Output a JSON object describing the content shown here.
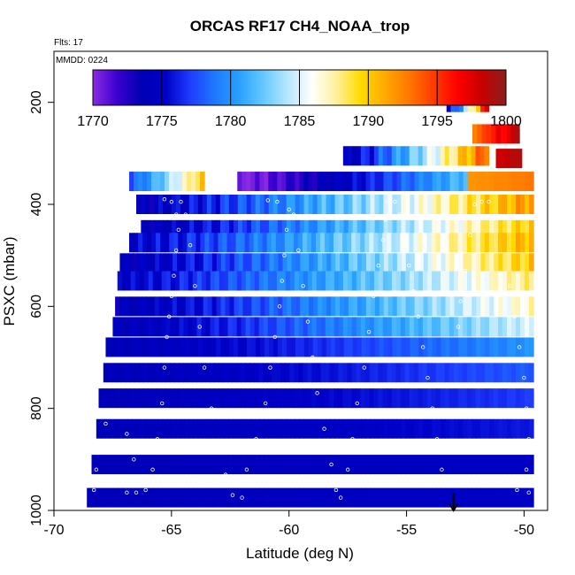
{
  "chart_data": {
    "type": "heatmap",
    "title": "ORCAS RF17 CH4_NOAA_trop",
    "flights_label": "Flts: 17",
    "date_label": "MMDD: 0224",
    "xlabel": "Latitude (deg N)",
    "ylabel": "PSXC (mbar)",
    "xlim": [
      -70,
      -49
    ],
    "ylim": [
      1000,
      100
    ],
    "x_ticks": [
      -70,
      -65,
      -60,
      -55,
      -50
    ],
    "x_tick_labels": [
      "-70",
      "-65",
      "-60",
      "-55",
      "-50"
    ],
    "y_ticks": [
      200,
      400,
      600,
      800,
      1000
    ],
    "y_tick_labels": [
      "200",
      "400",
      "600",
      "800",
      "1000"
    ],
    "colorbar": {
      "min": 1770,
      "max": 1800,
      "ticks": [
        1770,
        1775,
        1780,
        1785,
        1790,
        1795,
        1800
      ],
      "tick_labels": [
        "1770",
        "1775",
        "1780",
        "1785",
        "1790",
        "1795",
        "1800"
      ],
      "colors": [
        "#8a2be2",
        "#3a00d0",
        "#0000b4",
        "#0000c8",
        "#1e3cff",
        "#1e78ff",
        "#28a0ff",
        "#64c8ff",
        "#b4e6ff",
        "#ffffff",
        "#fff0a0",
        "#ffdc00",
        "#ffaa00",
        "#ff7800",
        "#ff3c00",
        "#ff0000",
        "#c80000",
        "#8c1e1e"
      ]
    },
    "bands": [
      {
        "p": 200,
        "x0": -53.3,
        "x1": -51.5,
        "start": 1775,
        "end": 1797
      },
      {
        "p": 262,
        "x0": -51.1,
        "x1": -50.2,
        "start": 1796,
        "end": 1799
      },
      {
        "p": 262,
        "x0": -52.2,
        "x1": -51.0,
        "start": 1793,
        "end": 1797
      },
      {
        "p": 305,
        "x0": -57.7,
        "x1": -51.5,
        "start": 1774,
        "end": 1794
      },
      {
        "p": 310,
        "x0": -51.2,
        "x1": -50.1,
        "start": 1798,
        "end": 1799
      },
      {
        "p": 355,
        "x0": -66.8,
        "x1": -63.6,
        "start": 1778,
        "end": 1790
      },
      {
        "p": 355,
        "x0": -62.2,
        "x1": -52.4,
        "start": 1770,
        "end": 1782
      },
      {
        "p": 355,
        "x0": -52.4,
        "x1": -49.6,
        "start": 1792,
        "end": 1793
      },
      {
        "p": 400,
        "x0": -66.5,
        "x1": -49.6,
        "start": 1774,
        "end": 1792
      },
      {
        "p": 450,
        "x0": -66.3,
        "x1": -49.6,
        "start": 1774,
        "end": 1790
      },
      {
        "p": 475,
        "x0": -66.8,
        "x1": -49.6,
        "start": 1775,
        "end": 1791
      },
      {
        "p": 515,
        "x0": -67.2,
        "x1": -49.6,
        "start": 1774,
        "end": 1790
      },
      {
        "p": 550,
        "x0": -67.3,
        "x1": -49.6,
        "start": 1775,
        "end": 1788
      },
      {
        "p": 600,
        "x0": -67.4,
        "x1": -49.6,
        "start": 1774,
        "end": 1787
      },
      {
        "p": 640,
        "x0": -67.5,
        "x1": -49.6,
        "start": 1774,
        "end": 1785
      },
      {
        "p": 680,
        "x0": -67.8,
        "x1": -49.6,
        "start": 1774,
        "end": 1780
      },
      {
        "p": 730,
        "x0": -67.9,
        "x1": -49.6,
        "start": 1774,
        "end": 1778
      },
      {
        "p": 780,
        "x0": -68.1,
        "x1": -49.6,
        "start": 1774,
        "end": 1777
      },
      {
        "p": 840,
        "x0": -68.2,
        "x1": -49.6,
        "start": 1774,
        "end": 1776
      },
      {
        "p": 910,
        "x0": -68.4,
        "x1": -49.6,
        "start": 1774,
        "end": 1775
      },
      {
        "p": 975,
        "x0": -68.6,
        "x1": -49.6,
        "start": 1774,
        "end": 1775
      }
    ],
    "flight_track": [
      [
        -68.3,
        960
      ],
      [
        -68.2,
        920
      ],
      [
        -68.0,
        870
      ],
      [
        -67.8,
        830
      ],
      [
        -67.5,
        815
      ],
      [
        -67.2,
        810
      ],
      [
        -66.9,
        850
      ],
      [
        -66.6,
        900
      ],
      [
        -66.3,
        940
      ],
      [
        -66.1,
        960
      ],
      [
        -66.5,
        965
      ],
      [
        -66.9,
        965
      ],
      [
        -65.8,
        920
      ],
      [
        -65.6,
        860
      ],
      [
        -65.4,
        790
      ],
      [
        -65.3,
        720
      ],
      [
        -65.2,
        660
      ],
      [
        -65.1,
        620
      ],
      [
        -65.0,
        580
      ],
      [
        -64.9,
        540
      ],
      [
        -64.8,
        490
      ],
      [
        -64.7,
        450
      ],
      [
        -64.8,
        420
      ],
      [
        -65.0,
        395
      ],
      [
        -65.3,
        390
      ],
      [
        -64.6,
        395
      ],
      [
        -64.4,
        420
      ],
      [
        -64.2,
        480
      ],
      [
        -64.0,
        560
      ],
      [
        -63.8,
        640
      ],
      [
        -63.6,
        720
      ],
      [
        -63.3,
        800
      ],
      [
        -63.0,
        870
      ],
      [
        -62.7,
        930
      ],
      [
        -62.4,
        970
      ],
      [
        -62.0,
        975
      ],
      [
        -61.8,
        920
      ],
      [
        -61.4,
        860
      ],
      [
        -61.0,
        790
      ],
      [
        -60.8,
        720
      ],
      [
        -60.6,
        660
      ],
      [
        -60.4,
        600
      ],
      [
        -60.3,
        550
      ],
      [
        -60.2,
        500
      ],
      [
        -60.1,
        450
      ],
      [
        -60.0,
        410
      ],
      [
        -60.5,
        395
      ],
      [
        -60.9,
        392
      ],
      [
        -59.8,
        420
      ],
      [
        -59.6,
        490
      ],
      [
        -59.4,
        560
      ],
      [
        -59.2,
        630
      ],
      [
        -59.0,
        700
      ],
      [
        -58.8,
        770
      ],
      [
        -58.5,
        840
      ],
      [
        -58.2,
        910
      ],
      [
        -58.0,
        960
      ],
      [
        -57.8,
        975
      ],
      [
        -57.5,
        920
      ],
      [
        -57.3,
        860
      ],
      [
        -57.1,
        790
      ],
      [
        -56.8,
        720
      ],
      [
        -56.6,
        650
      ],
      [
        -56.4,
        580
      ],
      [
        -56.2,
        520
      ],
      [
        -56.0,
        470
      ],
      [
        -55.9,
        430
      ],
      [
        -55.8,
        395
      ],
      [
        -55.5,
        395
      ],
      [
        -55.3,
        420
      ],
      [
        -55.1,
        470
      ],
      [
        -54.9,
        520
      ],
      [
        -54.7,
        570
      ],
      [
        -54.5,
        620
      ],
      [
        -54.3,
        680
      ],
      [
        -54.1,
        740
      ],
      [
        -53.9,
        800
      ],
      [
        -53.7,
        860
      ],
      [
        -53.5,
        920
      ],
      [
        -53.2,
        950
      ],
      [
        -52.8,
        640
      ],
      [
        -52.7,
        590
      ],
      [
        -52.5,
        530
      ],
      [
        -52.3,
        460
      ],
      [
        -52.1,
        400
      ],
      [
        -51.8,
        395
      ],
      [
        -51.5,
        395
      ],
      [
        -53.0,
        260
      ],
      [
        -53.1,
        330
      ],
      [
        -53.2,
        380
      ],
      [
        -52.9,
        200
      ],
      [
        -50.6,
        560
      ],
      [
        -50.4,
        620
      ],
      [
        -50.2,
        680
      ],
      [
        -50.0,
        740
      ],
      [
        -49.9,
        800
      ],
      [
        -49.8,
        860
      ],
      [
        -49.9,
        920
      ],
      [
        -50.3,
        960
      ],
      [
        -49.8,
        965
      ],
      [
        -50.1,
        250
      ],
      [
        -49.9,
        270
      ]
    ],
    "arrow_x": -53
  }
}
